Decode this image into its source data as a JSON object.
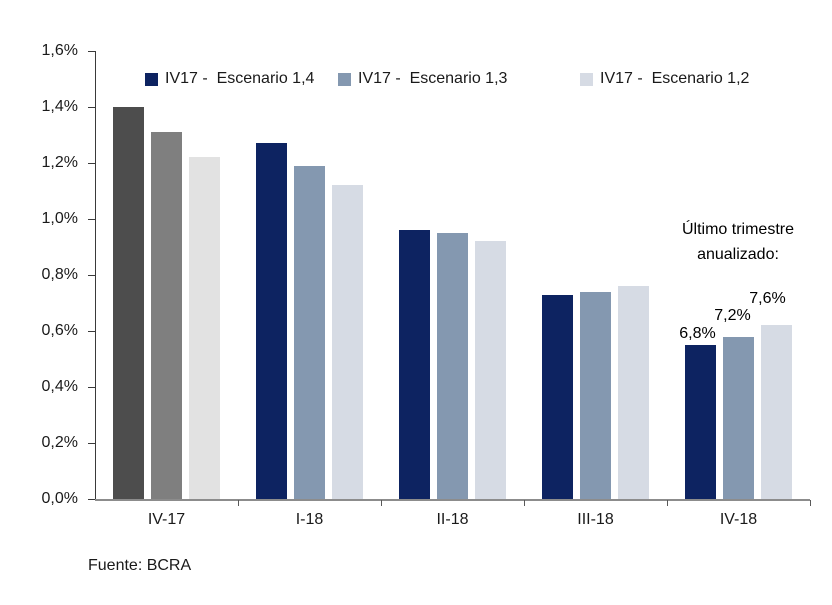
{
  "chart_data": {
    "type": "bar",
    "title": "",
    "xlabel": "",
    "ylabel": "",
    "categories": [
      "IV-17",
      "I-18",
      "II-18",
      "III-18",
      "IV-18"
    ],
    "series": [
      {
        "name": "IV17 -  Escenario 1,4",
        "color": "#0d2361",
        "first_category_color": "#4d4d4d",
        "values": [
          1.4,
          1.27,
          0.96,
          0.73,
          0.55
        ]
      },
      {
        "name": "IV17 -  Escenario 1,3",
        "color": "#8498b0",
        "first_category_color": "#7f7f7f",
        "values": [
          1.31,
          1.19,
          0.95,
          0.74,
          0.58
        ]
      },
      {
        "name": "IV17 -  Escenario 1,2",
        "color": "#d6dbe4",
        "first_category_color": "#e2e2e2",
        "values": [
          1.22,
          1.12,
          0.92,
          0.76,
          0.62
        ]
      }
    ],
    "ylim": [
      0,
      1.6
    ],
    "ytick_step": 0.2,
    "ytick_labels": [
      "0,0%",
      "0,2%",
      "0,4%",
      "0,6%",
      "0,8%",
      "1,0%",
      "1,2%",
      "1,4%",
      "1,6%"
    ],
    "grid": false,
    "legend_position": "top",
    "annotation": {
      "line1": "Último trimestre",
      "line2": "anualizado:"
    },
    "last_category_data_labels": [
      "6,8%",
      "7,2%",
      "7,6%"
    ],
    "source": "Fuente: BCRA"
  }
}
